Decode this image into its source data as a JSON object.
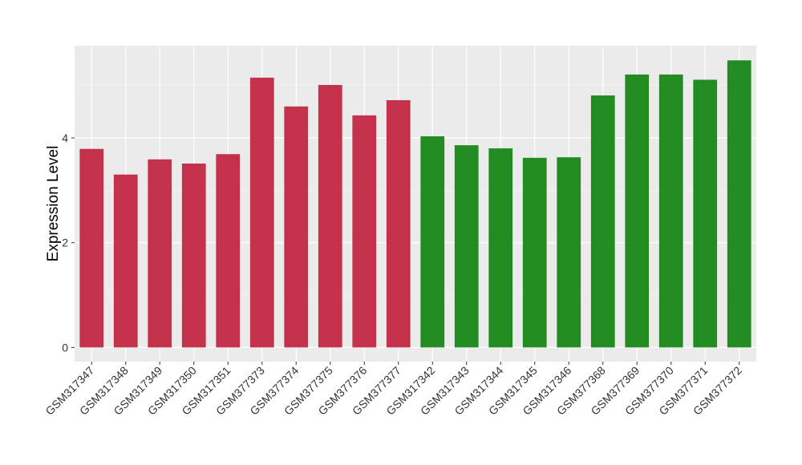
{
  "chart_data": {
    "type": "bar",
    "y_label": "Expression Level",
    "categories": [
      "GSM317347",
      "GSM317348",
      "GSM317349",
      "GSM317350",
      "GSM317351",
      "GSM377373",
      "GSM377374",
      "GSM377375",
      "GSM377376",
      "GSM377377",
      "GSM317342",
      "GSM317343",
      "GSM317344",
      "GSM317345",
      "GSM317346",
      "GSM377368",
      "GSM377369",
      "GSM377370",
      "GSM377371",
      "GSM377372"
    ],
    "values": [
      3.79,
      3.3,
      3.59,
      3.51,
      3.69,
      5.15,
      4.6,
      5.01,
      4.43,
      4.72,
      4.03,
      3.86,
      3.8,
      3.62,
      3.63,
      4.81,
      5.21,
      5.21,
      5.11,
      5.48
    ],
    "colors": [
      "#c4314b",
      "#c4314b",
      "#c4314b",
      "#c4314b",
      "#c4314b",
      "#c4314b",
      "#c4314b",
      "#c4314b",
      "#c4314b",
      "#c4314b",
      "#228b22",
      "#228b22",
      "#228b22",
      "#228b22",
      "#228b22",
      "#228b22",
      "#228b22",
      "#228b22",
      "#228b22",
      "#228b22"
    ],
    "ylim": [
      -0.27,
      5.76
    ],
    "yticks": [
      0,
      2,
      4
    ],
    "minor_yticks": [
      1,
      3,
      5
    ],
    "grid": true
  }
}
